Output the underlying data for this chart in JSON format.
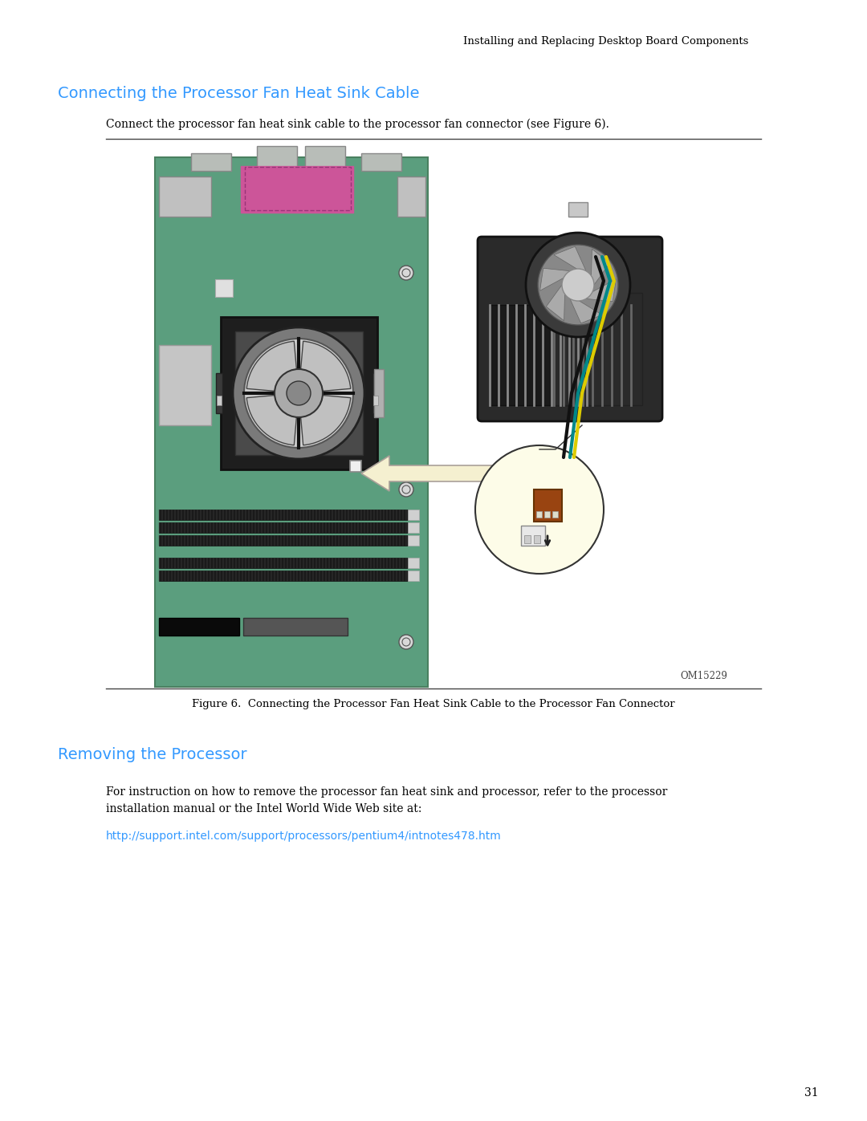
{
  "page_header": "Installing and Replacing Desktop Board Components",
  "section1_title": "Connecting the Processor Fan Heat Sink Cable",
  "section1_title_color": "#3399ff",
  "section1_body": "Connect the processor fan heat sink cable to the processor fan connector (see Figure 6).",
  "figure_label": "OM15229",
  "figure_caption": "Figure 6.  Connecting the Processor Fan Heat Sink Cable to the Processor Fan Connector",
  "section2_title": "Removing the Processor",
  "section2_title_color": "#3399ff",
  "section2_body1": "For instruction on how to remove the processor fan heat sink and processor, refer to the processor\ninstallation manual or the Intel World Wide Web site at:",
  "section2_link": "http://support.intel.com/support/processors/pentium4/intnotes478.htm",
  "section2_link_color": "#3399ff",
  "page_number": "31",
  "bg_color": "#ffffff",
  "board_color": "#5b9e7e",
  "board_border_color": "#4a8060"
}
